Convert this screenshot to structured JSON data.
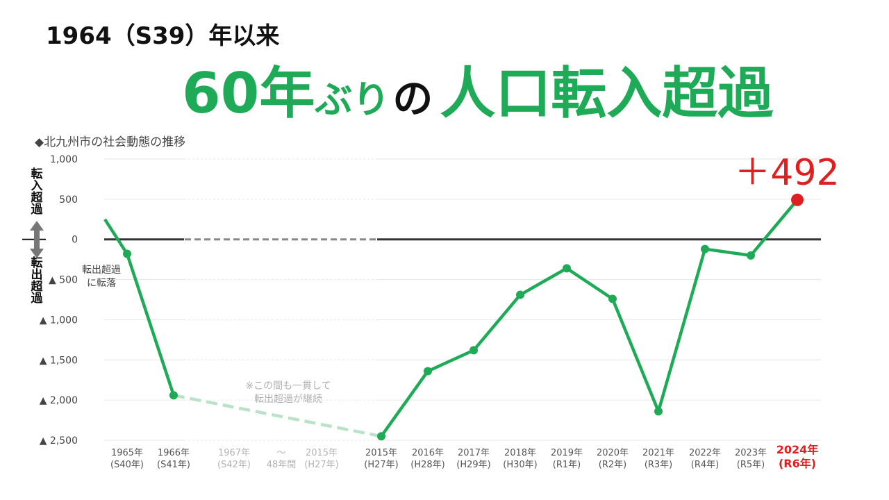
{
  "header": {
    "subtitle": "1964（S39）年以来",
    "title_part1": "60年",
    "title_part2": "ぶり",
    "title_part3": "の",
    "title_part4": "人口転入超過"
  },
  "caption": "◆北九州市の社会動態の推移",
  "side_labels": {
    "top": [
      "転",
      "入",
      "超",
      "過"
    ],
    "bottom": [
      "転",
      "出",
      "超",
      "過"
    ]
  },
  "annotations": {
    "turn_to_out": [
      "転出超過",
      "に転落"
    ],
    "gap_note": [
      "※この間も一貫して",
      "転出超過が継続"
    ],
    "highlight_value": "＋492"
  },
  "colors": {
    "line": "#1eaa56",
    "line_faded": "#b9e3c8",
    "zero_line": "#333333",
    "zero_gap": "#888888",
    "highlight": "#e02020",
    "grid": "#e6e6e6"
  },
  "chart_data": {
    "type": "line",
    "title": "◆北九州市の社会動態の推移",
    "ylim": [
      -2500,
      1000
    ],
    "yticks": [
      {
        "value": 1000,
        "label": "1,000"
      },
      {
        "value": 500,
        "label": "500"
      },
      {
        "value": 0,
        "label": "0"
      },
      {
        "value": -500,
        "label": "▲ 500"
      },
      {
        "value": -1000,
        "label": "▲ 1,000"
      },
      {
        "value": -1500,
        "label": "▲ 1,500"
      },
      {
        "value": -2000,
        "label": "▲ 2,000"
      },
      {
        "value": -2500,
        "label": "▲ 2,500"
      }
    ],
    "start_value": 250,
    "points": [
      {
        "label": [
          "1965年",
          "(S40年)"
        ],
        "value": -180
      },
      {
        "label": [
          "1966年",
          "(S41年)"
        ],
        "value": -1940
      },
      {
        "label": [
          "2015年",
          "(H27年)"
        ],
        "value": -2450
      },
      {
        "label": [
          "2016年",
          "(H28年)"
        ],
        "value": -1640
      },
      {
        "label": [
          "2017年",
          "(H29年)"
        ],
        "value": -1380
      },
      {
        "label": [
          "2018年",
          "(H30年)"
        ],
        "value": -690
      },
      {
        "label": [
          "2019年",
          "(R1年)"
        ],
        "value": -360
      },
      {
        "label": [
          "2020年",
          "(R2年)"
        ],
        "value": -740
      },
      {
        "label": [
          "2021年",
          "(R3年)"
        ],
        "value": -2140
      },
      {
        "label": [
          "2022年",
          "(R4年)"
        ],
        "value": -120
      },
      {
        "label": [
          "2023年",
          "(R5年)"
        ],
        "value": -200
      },
      {
        "label": [
          "2024年",
          "(R6年)"
        ],
        "value": 492
      }
    ],
    "gap_labels": [
      {
        "label": [
          "1967年",
          "(S42年)"
        ]
      },
      {
        "label": [
          "〜",
          "48年間"
        ]
      },
      {
        "label": [
          "2015年",
          "(H27年)"
        ]
      }
    ]
  }
}
